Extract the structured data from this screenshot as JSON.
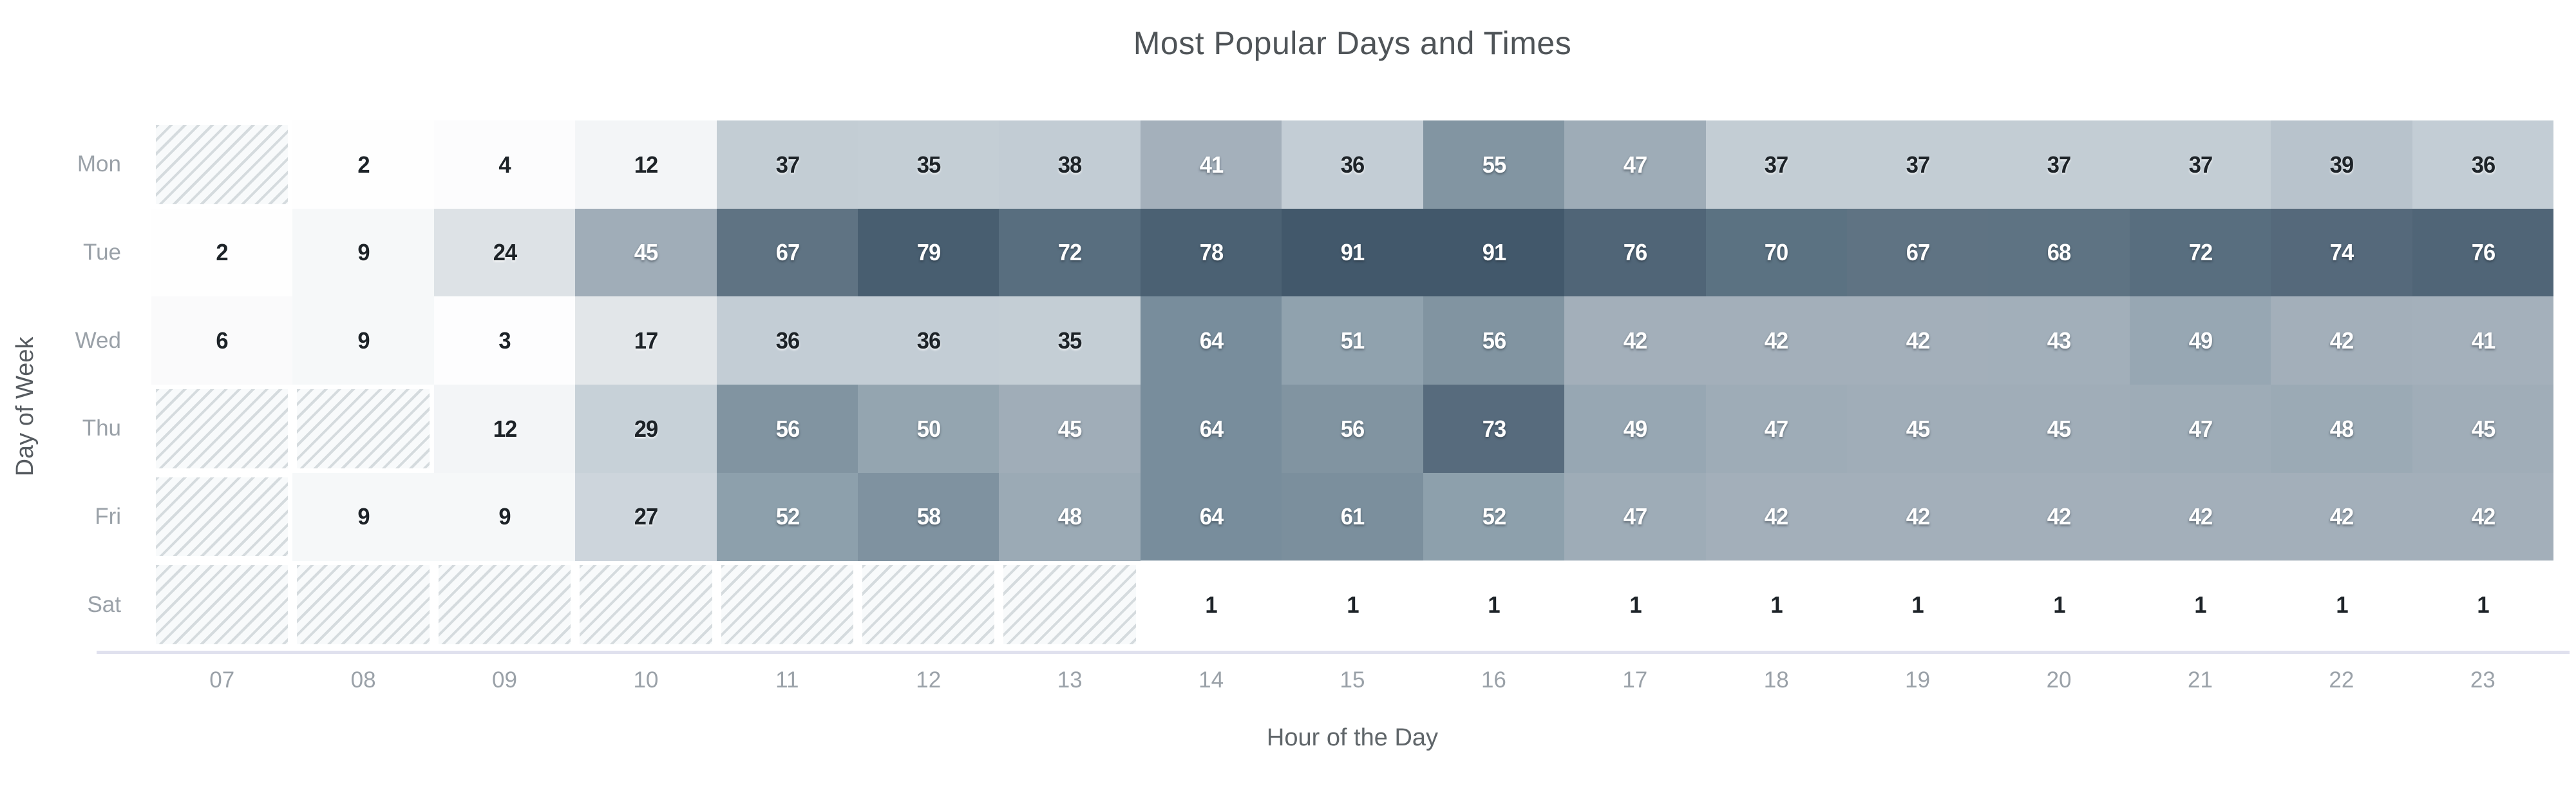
{
  "title": "Most Popular Days and Times",
  "chart_data": {
    "type": "heatmap",
    "title": "Most Popular Days and Times",
    "xlabel": "Hour of the Day",
    "ylabel": "Day of Week",
    "x": [
      "07",
      "08",
      "09",
      "10",
      "11",
      "12",
      "13",
      "14",
      "15",
      "16",
      "17",
      "18",
      "19",
      "20",
      "21",
      "22",
      "23"
    ],
    "y": [
      "Mon",
      "Tue",
      "Wed",
      "Thu",
      "Fri",
      "Sat"
    ],
    "matrix": [
      [
        null,
        2,
        4,
        12,
        37,
        35,
        38,
        41,
        36,
        55,
        47,
        37,
        37,
        37,
        37,
        39,
        36
      ],
      [
        2,
        9,
        24,
        45,
        67,
        79,
        72,
        78,
        91,
        91,
        76,
        70,
        67,
        68,
        72,
        74,
        76
      ],
      [
        6,
        9,
        3,
        17,
        36,
        36,
        35,
        64,
        51,
        56,
        42,
        42,
        42,
        43,
        49,
        42,
        41
      ],
      [
        null,
        null,
        12,
        29,
        56,
        50,
        45,
        64,
        56,
        73,
        49,
        47,
        45,
        45,
        47,
        48,
        45
      ],
      [
        null,
        9,
        9,
        27,
        52,
        58,
        48,
        64,
        61,
        52,
        47,
        42,
        42,
        42,
        42,
        42,
        42
      ],
      [
        null,
        null,
        null,
        null,
        null,
        null,
        null,
        1,
        1,
        1,
        1,
        1,
        1,
        1,
        1,
        1,
        1
      ]
    ],
    "null_style": "hatched-diagonal",
    "value_range": [
      1,
      91
    ],
    "grid": false,
    "legend": "none",
    "colors": {
      "scale_stops": [
        [
          1,
          "#ffffff"
        ],
        [
          12,
          "#f3f5f7"
        ],
        [
          17,
          "#e2e6e9"
        ],
        [
          24,
          "#dde2e6"
        ],
        [
          28,
          "#c8d1d8"
        ],
        [
          38,
          "#c2ccd4"
        ],
        [
          41,
          "#a4b0bb"
        ],
        [
          47,
          "#9eacb7"
        ],
        [
          52,
          "#8da0ac"
        ],
        [
          55,
          "#8295a2"
        ],
        [
          61,
          "#7b8f9d"
        ],
        [
          64,
          "#788d9c"
        ],
        [
          67,
          "#5f7383"
        ],
        [
          70,
          "#5b7282"
        ],
        [
          74,
          "#55697b"
        ],
        [
          78,
          "#4b6173"
        ],
        [
          80,
          "#455b6d"
        ],
        [
          91,
          "#42586b"
        ]
      ],
      "light_text_threshold": 40,
      "cell_text_dark": "#1d2328",
      "cell_text_light": "#ffffff",
      "hatch_line": "#d5dbde",
      "hatch_bg": "#f8fafb",
      "axis_line": "#e0e1ee",
      "tick_text": "#9aa1a8",
      "axis_title_text": "#5f6569",
      "chart_title_text": "#4f5458"
    }
  }
}
